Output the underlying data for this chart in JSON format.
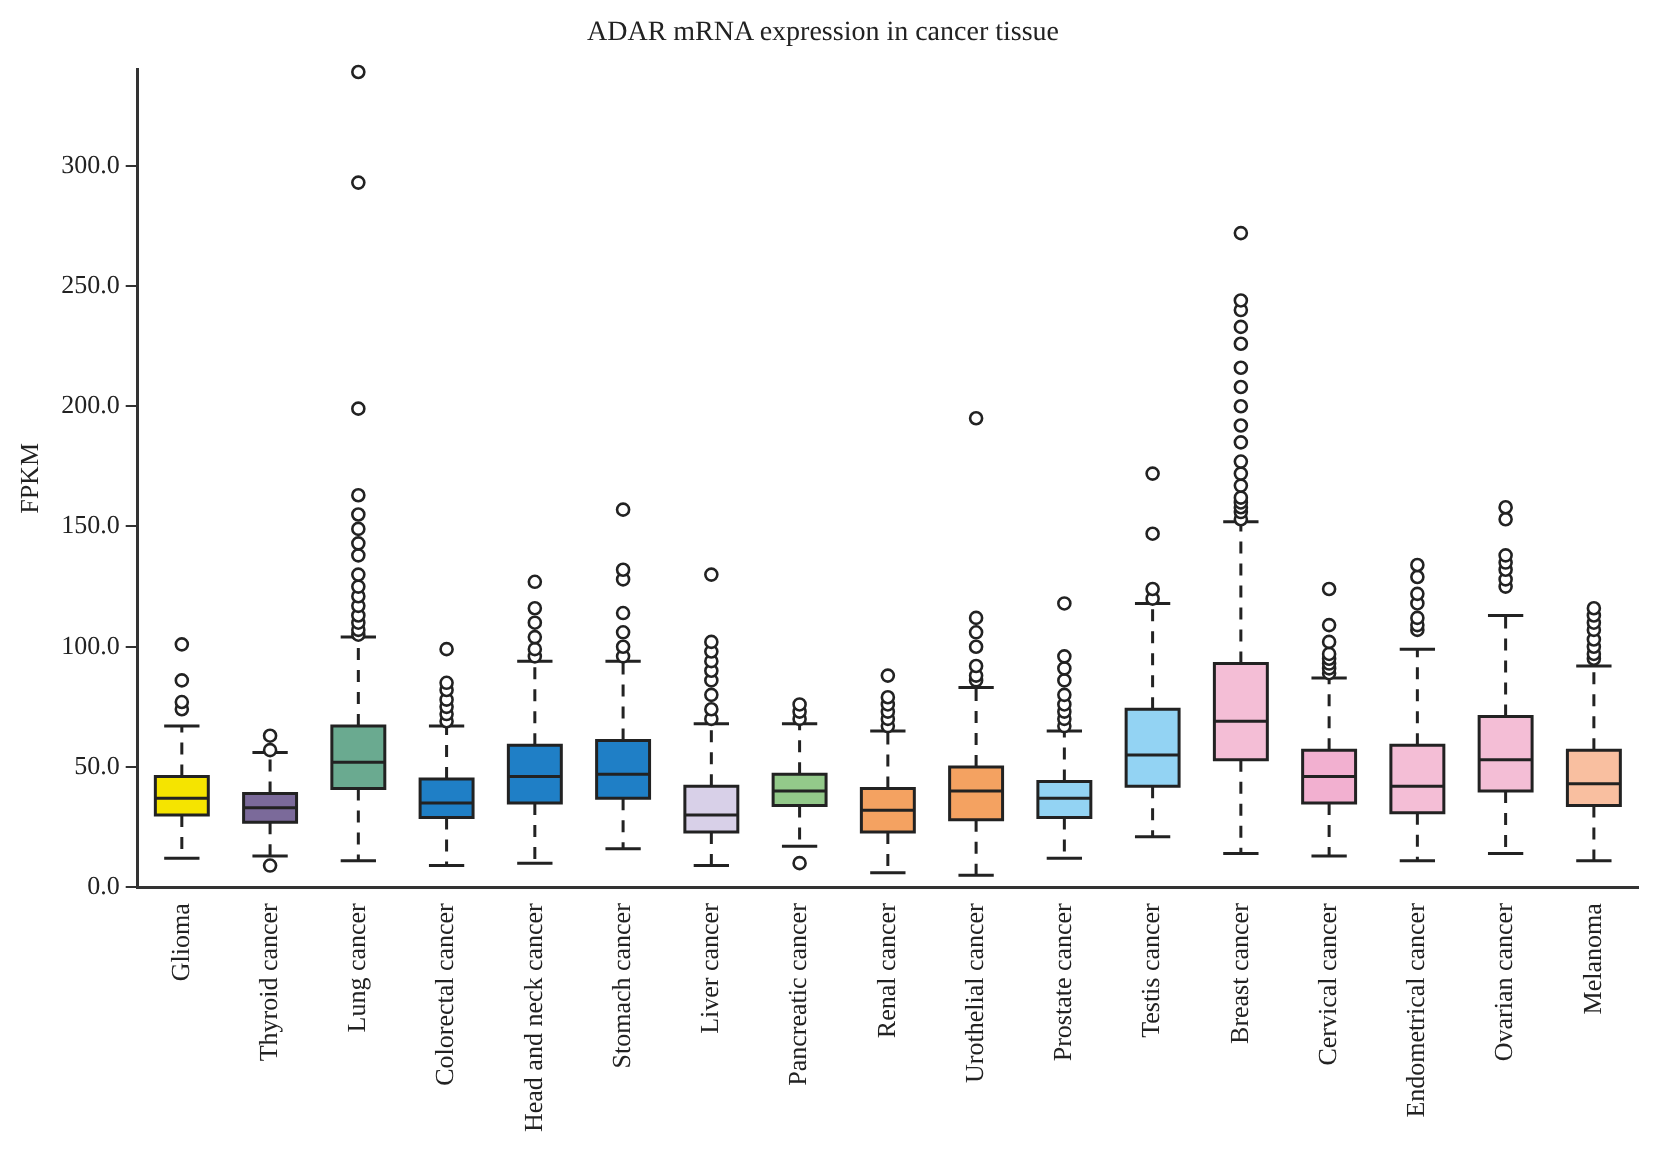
{
  "chart_data": {
    "type": "box",
    "title": "ADAR mRNA expression in cancer tissue",
    "ylabel": "FPKM",
    "categories": [
      "Glioma",
      "Thyroid cancer",
      "Lung cancer",
      "Colorectal cancer",
      "Head and neck cancer",
      "Stomach cancer",
      "Liver cancer",
      "Pancreatic cancer",
      "Renal cancer",
      "Urothelial cancer",
      "Prostate cancer",
      "Testis cancer",
      "Breast cancer",
      "Cervical cancer",
      "Endometrical cancer",
      "Ovarian cancer",
      "Melanoma"
    ],
    "colors": [
      "#f5e400",
      "#7b6a9a",
      "#6aaa90",
      "#1f7fc6",
      "#1f7fc6",
      "#1f7fc6",
      "#d8d0e8",
      "#93c98a",
      "#f4a261",
      "#f4a261",
      "#93d3f3",
      "#93d3f3",
      "#f4bed6",
      "#f2b0d0",
      "#f4bed6",
      "#f4bed6",
      "#f9bfa0"
    ],
    "boxes": [
      {
        "low": 12,
        "q1": 30,
        "median": 37,
        "q3": 46,
        "high": 67,
        "outliers": [
          74,
          77,
          86,
          101
        ]
      },
      {
        "low": 13,
        "q1": 27,
        "median": 33,
        "q3": 39,
        "high": 56,
        "outliers": [
          9,
          57,
          63
        ]
      },
      {
        "low": 11,
        "q1": 41,
        "median": 52,
        "q3": 67,
        "high": 104,
        "outliers": [
          105,
          107,
          110,
          113,
          117,
          121,
          125,
          130,
          138,
          143,
          149,
          155,
          163,
          199,
          293,
          339
        ]
      },
      {
        "low": 9,
        "q1": 29,
        "median": 35,
        "q3": 45,
        "high": 67,
        "outliers": [
          69,
          72,
          75,
          78,
          82,
          85,
          99
        ]
      },
      {
        "low": 10,
        "q1": 35,
        "median": 46,
        "q3": 59,
        "high": 94,
        "outliers": [
          96,
          99,
          104,
          110,
          116,
          127
        ]
      },
      {
        "low": 16,
        "q1": 37,
        "median": 47,
        "q3": 61,
        "high": 94,
        "outliers": [
          96,
          100,
          106,
          114,
          128,
          132,
          157
        ]
      },
      {
        "low": 9,
        "q1": 23,
        "median": 30,
        "q3": 42,
        "high": 68,
        "outliers": [
          70,
          74,
          80,
          86,
          90,
          94,
          98,
          102,
          130
        ]
      },
      {
        "low": 17,
        "q1": 34,
        "median": 40,
        "q3": 47,
        "high": 68,
        "outliers": [
          10,
          70,
          73,
          76
        ]
      },
      {
        "low": 6,
        "q1": 23,
        "median": 32,
        "q3": 41,
        "high": 65,
        "outliers": [
          67,
          70,
          73,
          76,
          79,
          88
        ]
      },
      {
        "low": 5,
        "q1": 28,
        "median": 40,
        "q3": 50,
        "high": 83,
        "outliers": [
          86,
          88,
          92,
          100,
          106,
          112,
          195
        ]
      },
      {
        "low": 12,
        "q1": 29,
        "median": 37,
        "q3": 44,
        "high": 65,
        "outliers": [
          67,
          70,
          73,
          76,
          80,
          86,
          91,
          96,
          118
        ]
      },
      {
        "low": 21,
        "q1": 42,
        "median": 55,
        "q3": 74,
        "high": 118,
        "outliers": [
          120,
          124,
          147,
          172
        ]
      },
      {
        "low": 14,
        "q1": 53,
        "median": 69,
        "q3": 93,
        "high": 152,
        "outliers": [
          153,
          156,
          158,
          160,
          162,
          167,
          172,
          177,
          185,
          192,
          200,
          208,
          216,
          226,
          233,
          240,
          244,
          272
        ]
      },
      {
        "low": 13,
        "q1": 35,
        "median": 46,
        "q3": 57,
        "high": 87,
        "outliers": [
          89,
          91,
          93,
          95,
          97,
          102,
          109,
          124
        ]
      },
      {
        "low": 11,
        "q1": 31,
        "median": 42,
        "q3": 59,
        "high": 99,
        "outliers": [
          107,
          109,
          112,
          118,
          122,
          129,
          134
        ]
      },
      {
        "low": 14,
        "q1": 40,
        "median": 53,
        "q3": 71,
        "high": 113,
        "outliers": [
          125,
          128,
          132,
          135,
          138,
          153,
          158
        ]
      },
      {
        "low": 11,
        "q1": 34,
        "median": 43,
        "q3": 57,
        "high": 92,
        "outliers": [
          95,
          97,
          100,
          103,
          107,
          110,
          113,
          116
        ]
      }
    ],
    "ylim": [
      0,
      340
    ],
    "yticks": [
      {
        "value": 0,
        "label": "0.0"
      },
      {
        "value": 50,
        "label": "50.0"
      },
      {
        "value": 100,
        "label": "100.0"
      },
      {
        "value": 150,
        "label": "150.0"
      },
      {
        "value": 200,
        "label": "200.0"
      },
      {
        "value": 250,
        "label": "250.0"
      },
      {
        "value": 300,
        "label": "300.0"
      }
    ],
    "grid": false,
    "legend": false
  }
}
